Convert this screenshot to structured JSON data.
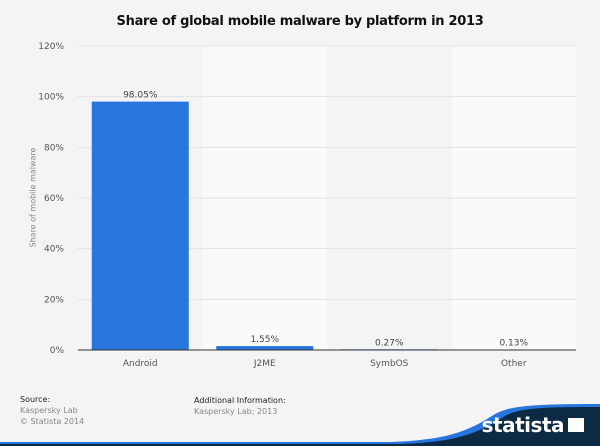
{
  "chart_data": {
    "type": "bar",
    "title": "Share of global mobile malware by platform in 2013",
    "xlabel": "",
    "ylabel": "Share of mobile malware",
    "categories": [
      "Android",
      "J2ME",
      "SymbOS",
      "Other"
    ],
    "values": [
      98.05,
      1.55,
      0.27,
      0.13
    ],
    "data_labels": [
      "98.05%",
      "1.55%",
      "0.27%",
      "0.13%"
    ],
    "ylim": [
      0,
      120
    ],
    "yticks": [
      "0%",
      "20%",
      "40%",
      "60%",
      "80%",
      "100%",
      "120%"
    ],
    "grid": true,
    "legend": "none",
    "bar_color": "#2876dd"
  },
  "footer": {
    "source_label": "Source:",
    "source": "Kaspersky Lab",
    "copyright": "© Statista 2014",
    "additional_label": "Additional Information:",
    "additional": "Kaspersky Lab; 2013",
    "brand": "statista"
  }
}
